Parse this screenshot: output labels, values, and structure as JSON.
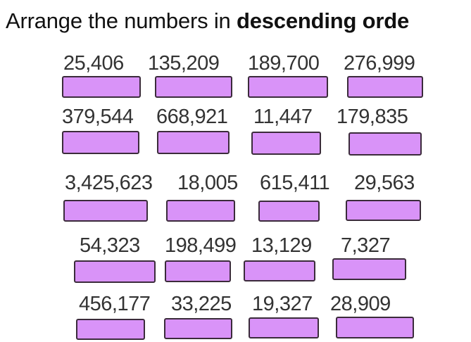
{
  "instruction": {
    "prefix": "Arrange the numbers in ",
    "emphasis": "descending orde"
  },
  "rows": [
    [
      "25,406",
      "135,209",
      "189,700",
      "276,999"
    ],
    [
      "379,544",
      "668,921",
      "11,447",
      "179,835"
    ],
    [
      "3,425,623",
      "18,005",
      "615,411",
      "29,563"
    ],
    [
      "54,323",
      "198,499",
      "13,129",
      "7,327"
    ],
    [
      "456,177",
      "33,225",
      "19,327",
      "28,909"
    ]
  ],
  "colors": {
    "answer_box_fill": "#d993f8",
    "answer_box_border": "#3b2b3b"
  }
}
